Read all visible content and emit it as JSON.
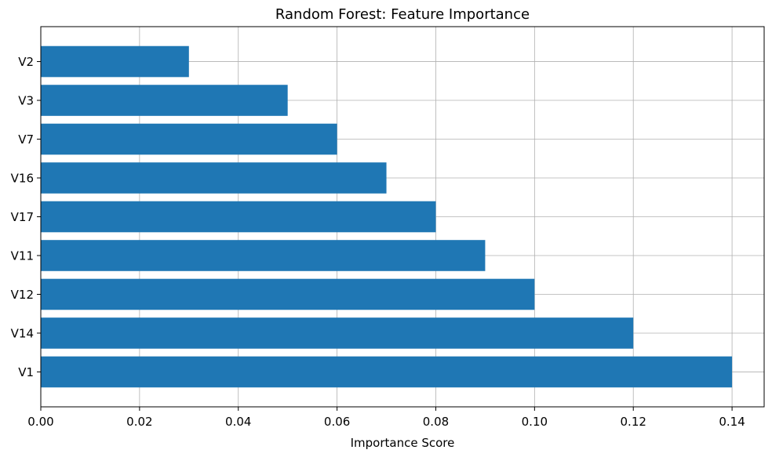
{
  "chart_data": {
    "type": "bar",
    "orientation": "horizontal",
    "title": "Random Forest: Feature Importance",
    "xlabel": "Importance Score",
    "ylabel": "",
    "categories": [
      "V1",
      "V14",
      "V12",
      "V11",
      "V17",
      "V16",
      "V7",
      "V3",
      "V2"
    ],
    "values": [
      0.14,
      0.12,
      0.1,
      0.09,
      0.08,
      0.07,
      0.06,
      0.05,
      0.03
    ],
    "xlim": [
      0,
      0.1465
    ],
    "xticks": [
      0.0,
      0.02,
      0.04,
      0.06,
      0.08,
      0.1,
      0.12,
      0.14
    ],
    "xtick_labels": [
      "0.00",
      "0.02",
      "0.04",
      "0.06",
      "0.08",
      "0.10",
      "0.12",
      "0.14"
    ],
    "grid": true,
    "colors": {
      "bar": "#1f77b4",
      "grid": "#b0b0b0",
      "axis": "#000000"
    }
  }
}
